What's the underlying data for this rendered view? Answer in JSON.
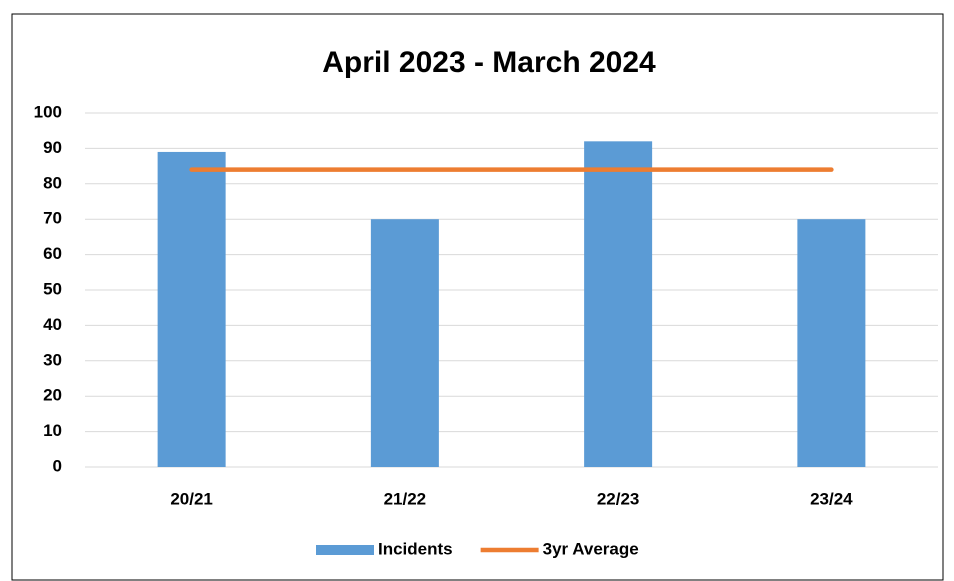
{
  "chart_data": {
    "type": "bar",
    "title": "April 2023 - March 2024",
    "categories": [
      "20/21",
      "21/22",
      "22/23",
      "23/24"
    ],
    "series": [
      {
        "name": "Incidents",
        "type": "bar",
        "color": "#5b9bd5",
        "values": [
          89,
          70,
          92,
          70
        ]
      },
      {
        "name": "3yr Average",
        "type": "line",
        "color": "#ed7d31",
        "values": [
          84,
          84,
          84,
          84
        ]
      }
    ],
    "ylim": [
      0,
      100
    ],
    "yticks": [
      0,
      10,
      20,
      30,
      40,
      50,
      60,
      70,
      80,
      90,
      100
    ],
    "grid": true,
    "legend": "bottom"
  }
}
